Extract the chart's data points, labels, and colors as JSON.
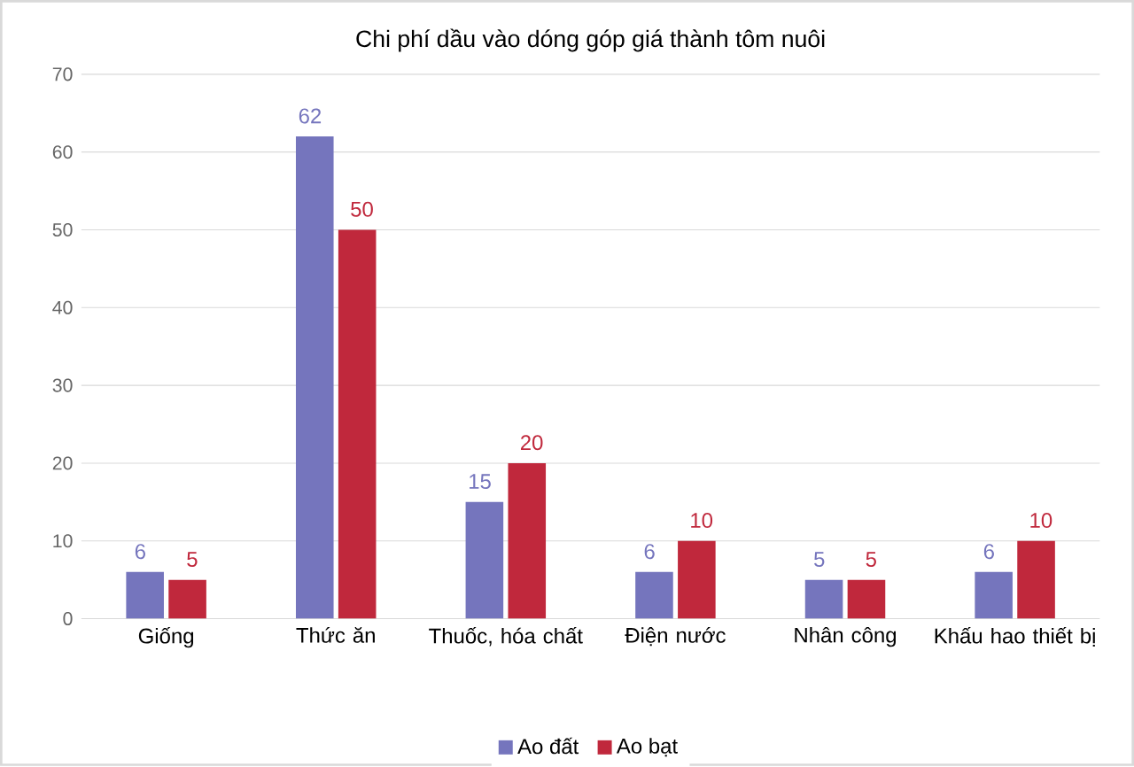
{
  "chart_data": {
    "type": "bar",
    "title": "Chi phí dầu vào dóng góp giá thành tôm nuôi",
    "categories": [
      "Giống",
      "Thức ăn",
      "Thuốc, hóa chất",
      "Điện nước",
      "Nhân công",
      "Khấu hao thiết bị"
    ],
    "series": [
      {
        "name": "Ao đất",
        "color": "#7575bd",
        "values": [
          6,
          62,
          15,
          6,
          5,
          6
        ]
      },
      {
        "name": "Ao bạt",
        "color": "#c0283c",
        "values": [
          5,
          50,
          20,
          10,
          5,
          10
        ]
      }
    ],
    "ylim": [
      0,
      70
    ],
    "yticks": [
      0,
      10,
      20,
      30,
      40,
      50,
      60,
      70
    ],
    "grid": "y",
    "legend": "bottom",
    "data_labels": true
  }
}
